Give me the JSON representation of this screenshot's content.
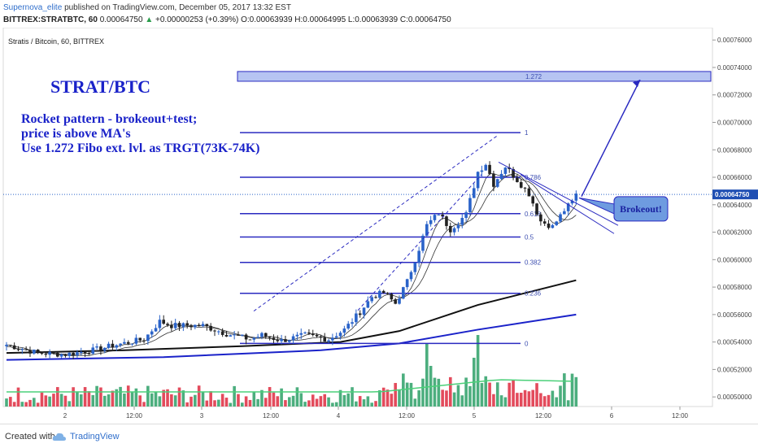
{
  "header": {
    "author": "Supernova_elite",
    "published": "published on TradingView.com, December 05, 2017 13:32 EST",
    "symbol_line": "BITTREX:STRATBTC, 60",
    "last": "0.00064750",
    "change": "+0.00000253 (+0.39%)",
    "ohlc": "O:0.00063939 H:0.00064995 L:0.00063939 C:0.00064750"
  },
  "footer": {
    "created_with": "Created with",
    "brand": "TradingView"
  },
  "chart_data": {
    "type": "candlestick",
    "title": "Stratis / Bitcoin, 60, BITTREX",
    "annotations": {
      "heading": "STRAT/BTC",
      "text_lines": [
        "Rocket pattern - brokeout+test;",
        "price is above MA's",
        "Use 1.272 Fibo ext. lvl. as TRGT(73K-74K)"
      ],
      "callout": "Brokeout!"
    },
    "ylim": [
      0.000493,
      0.000769
    ],
    "y_ticks": [
      "0.00050000",
      "0.00052000",
      "0.00054000",
      "0.00056000",
      "0.00058000",
      "0.00060000",
      "0.00062000",
      "0.00064000",
      "0.00066000",
      "0.00068000",
      "0.00070000",
      "0.00072000",
      "0.00074000",
      "0.00076000"
    ],
    "x_ticks": [
      "2",
      "12:00",
      "3",
      "12:00",
      "4",
      "12:00",
      "5",
      "12:00",
      "6",
      "12:00"
    ],
    "last_price_label": "0.00064750",
    "fib_levels": [
      {
        "label": "1.272",
        "price": 0.0007335
      },
      {
        "label": "1",
        "price": 0.0006925
      },
      {
        "label": "0.786",
        "price": 0.00066
      },
      {
        "label": "0.618",
        "price": 0.0006335
      },
      {
        "label": "0.5",
        "price": 0.0006165
      },
      {
        "label": "0.382",
        "price": 0.000598
      },
      {
        "label": "0.236",
        "price": 0.0005755
      },
      {
        "label": "0",
        "price": 0.000539
      }
    ],
    "candle_anchors": [
      [
        0,
        0.000538
      ],
      [
        8,
        0.000532
      ],
      [
        15,
        0.000531
      ],
      [
        22,
        0.000534
      ],
      [
        28,
        0.000538
      ],
      [
        35,
        0.000542
      ],
      [
        39,
        0.000555
      ],
      [
        42,
        0.000552
      ],
      [
        50,
        0.000552
      ],
      [
        56,
        0.000546
      ],
      [
        62,
        0.000542
      ],
      [
        65,
        0.000545
      ],
      [
        70,
        0.000541
      ],
      [
        76,
        0.000545
      ],
      [
        82,
        0.000542
      ],
      [
        86,
        0.000549
      ],
      [
        90,
        0.000562
      ],
      [
        93,
        0.000573
      ],
      [
        96,
        0.000576
      ],
      [
        99,
        0.000568
      ],
      [
        102,
        0.000584
      ],
      [
        105,
        0.000608
      ],
      [
        107,
        0.000625
      ],
      [
        110,
        0.000634
      ],
      [
        113,
        0.000622
      ],
      [
        117,
        0.000633
      ],
      [
        120,
        0.000664
      ],
      [
        122,
        0.00067
      ],
      [
        124,
        0.000655
      ],
      [
        127,
        0.000668
      ],
      [
        130,
        0.000658
      ],
      [
        133,
        0.000648
      ],
      [
        136,
        0.000628
      ],
      [
        139,
        0.000624
      ],
      [
        142,
        0.000636
      ],
      [
        144,
        0.000642
      ],
      [
        145,
        0.0006475
      ]
    ],
    "volume_note": "volume histogram in green/red along bottom",
    "ma_lines": [
      {
        "color": "#111111",
        "anchors": [
          [
            0,
            0.000532
          ],
          [
            30,
            0.000534
          ],
          [
            60,
            0.000537
          ],
          [
            85,
            0.00054
          ],
          [
            100,
            0.000548
          ],
          [
            120,
            0.000567
          ],
          [
            145,
            0.000585
          ]
        ]
      },
      {
        "color": "#1a22c9",
        "anchors": [
          [
            0,
            0.000527
          ],
          [
            40,
            0.000529
          ],
          [
            80,
            0.000534
          ],
          [
            100,
            0.000539
          ],
          [
            120,
            0.000549
          ],
          [
            145,
            0.00056
          ]
        ]
      }
    ],
    "colors": {
      "up": "#2a63c9",
      "down": "#222222",
      "vol_up": "#4cae7e",
      "vol_down": "#e34b5c",
      "fib": "#2a2ac0",
      "ma_fast": "#333333",
      "ma_slow": "#1a22c9",
      "vol_ma": "#4cd07a"
    }
  }
}
